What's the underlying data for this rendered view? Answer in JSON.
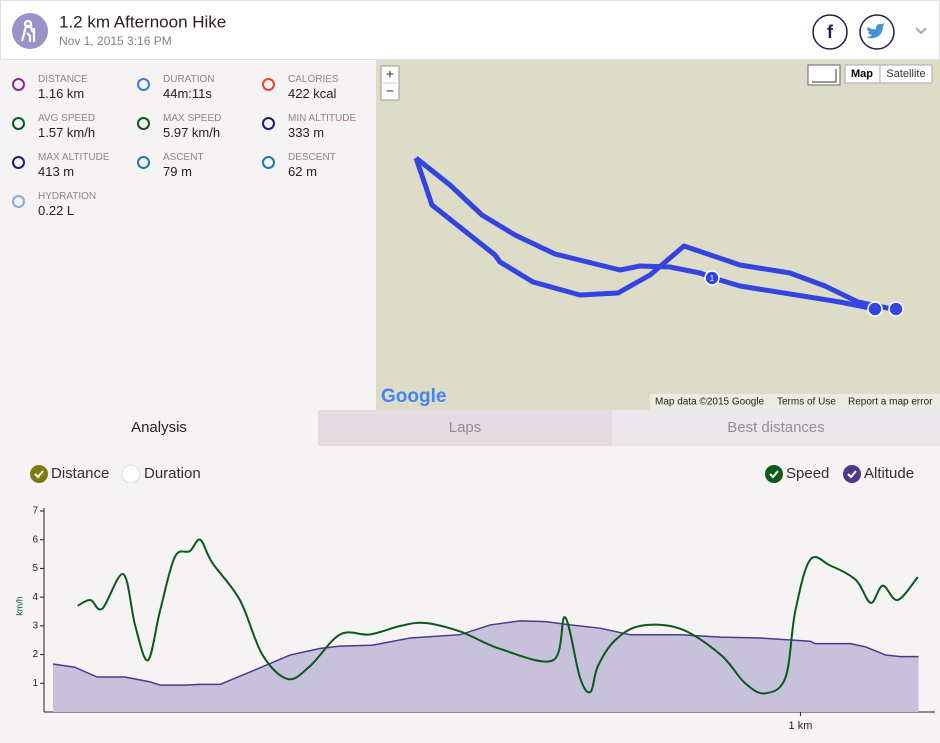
{
  "header": {
    "title": "1.2 km Afternoon Hike",
    "date": "Nov 1, 2015 3:16 PM",
    "facebook": "f"
  },
  "stats": [
    {
      "label": "DISTANCE",
      "value": "1.16 km"
    },
    {
      "label": "DURATION",
      "value": "44m:11s"
    },
    {
      "label": "CALORIES",
      "value": "422 kcal"
    },
    {
      "label": "AVG SPEED",
      "value": "1.57 km/h"
    },
    {
      "label": "MAX SPEED",
      "value": "5.97 km/h"
    },
    {
      "label": "MIN ALTITUDE",
      "value": "333 m"
    },
    {
      "label": "MAX ALTITUDE",
      "value": "413 m"
    },
    {
      "label": "ASCENT",
      "value": "79 m"
    },
    {
      "label": "DESCENT",
      "value": "62 m"
    },
    {
      "label": "HYDRATION",
      "value": "0.22 L"
    }
  ],
  "map": {
    "zoom_in": "+",
    "zoom_out": "−",
    "map_button": "Map",
    "satellite_button": "Satellite",
    "lap_marker": "1",
    "logo": "Google",
    "attribution": "Map data ©2015 Google",
    "terms": "Terms of Use",
    "report": "Report a map error"
  },
  "tabs": [
    "Analysis",
    "Laps",
    "Best distances"
  ],
  "x_toggles": [
    "Distance",
    "Duration"
  ],
  "chart_data": {
    "type": "line",
    "y_label": "km/h",
    "xlim": [
      0,
      1.18
    ],
    "xticks": [
      {
        "value": 1,
        "label": "1 km"
      }
    ],
    "ylim": [
      0,
      7
    ],
    "yticks": [
      1,
      2,
      3,
      4,
      5,
      6,
      7
    ],
    "y2lim": [
      301,
      548
    ],
    "series": [
      {
        "name": "Speed",
        "color": "#0b5a1a",
        "x": [
          0.033,
          0.05,
          0.066,
          0.094,
          0.11,
          0.127,
          0.143,
          0.163,
          0.183,
          0.197,
          0.213,
          0.25,
          0.28,
          0.314,
          0.344,
          0.384,
          0.424,
          0.465,
          0.498,
          0.545,
          0.598,
          0.669,
          0.685,
          0.705,
          0.719,
          0.729,
          0.752,
          0.786,
          0.839,
          0.893,
          0.926,
          0.953,
          0.98,
          0.993,
          1.013,
          1.04,
          1.074,
          1.094,
          1.11,
          1.13,
          1.157
        ],
        "values": [
          3.7,
          3.9,
          3.6,
          4.8,
          3.0,
          1.8,
          3.5,
          5.4,
          5.6,
          6.0,
          5.2,
          3.9,
          2.0,
          1.15,
          1.6,
          2.7,
          2.7,
          3.0,
          3.1,
          2.8,
          2.2,
          1.8,
          3.3,
          1.2,
          0.7,
          1.6,
          2.5,
          3.0,
          2.9,
          2.0,
          1.0,
          0.65,
          1.2,
          3.5,
          5.3,
          5.1,
          4.6,
          3.8,
          4.4,
          3.9,
          4.7
        ]
      },
      {
        "name": "Altitude",
        "color": "#4b3a8c",
        "axis": "y2",
        "x": [
          0,
          0.029,
          0.059,
          0.096,
          0.13,
          0.143,
          0.177,
          0.197,
          0.224,
          0.25,
          0.284,
          0.317,
          0.357,
          0.384,
          0.427,
          0.478,
          0.545,
          0.585,
          0.625,
          0.659,
          0.692,
          0.732,
          0.772,
          0.839,
          0.893,
          0.946,
          1.013,
          1.02,
          1.067,
          1.087,
          1.114,
          1.134,
          1.158
        ],
        "values": [
          360,
          356,
          344,
          344,
          338,
          334,
          334,
          335,
          335,
          345,
          358,
          371,
          379,
          382,
          383,
          392,
          396,
          408,
          413,
          412,
          408,
          404,
          396,
          396,
          393,
          392,
          388,
          385,
          385,
          381,
          371,
          369,
          369
        ]
      }
    ]
  }
}
